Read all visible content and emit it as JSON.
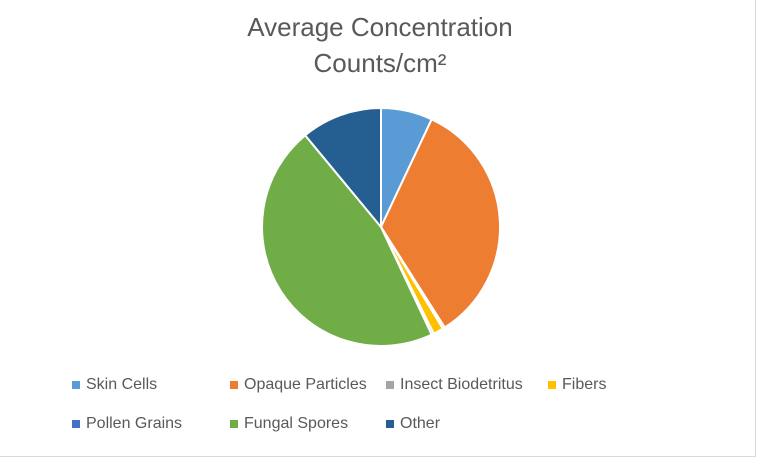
{
  "chart_data": {
    "type": "pie",
    "title_line1": "Average Concentration",
    "title_line2": "Counts/cm²",
    "legend_position": "bottom",
    "slices": [
      {
        "name": "Skin Cells",
        "value": 7.0,
        "color": "#5B9BD5"
      },
      {
        "name": "Opaque Particles",
        "value": 34.0,
        "color": "#ED7D31"
      },
      {
        "name": "Insect Biodetritus",
        "value": 0.3,
        "color": "#A5A5A5"
      },
      {
        "name": "Fibers",
        "value": 1.4,
        "color": "#FFC000"
      },
      {
        "name": "Pollen Grains",
        "value": 0.3,
        "color": "#4472C4"
      },
      {
        "name": "Fungal Spores",
        "value": 46.0,
        "color": "#70AD47"
      },
      {
        "name": "Other",
        "value": 11.0,
        "color": "#255E91"
      }
    ]
  }
}
